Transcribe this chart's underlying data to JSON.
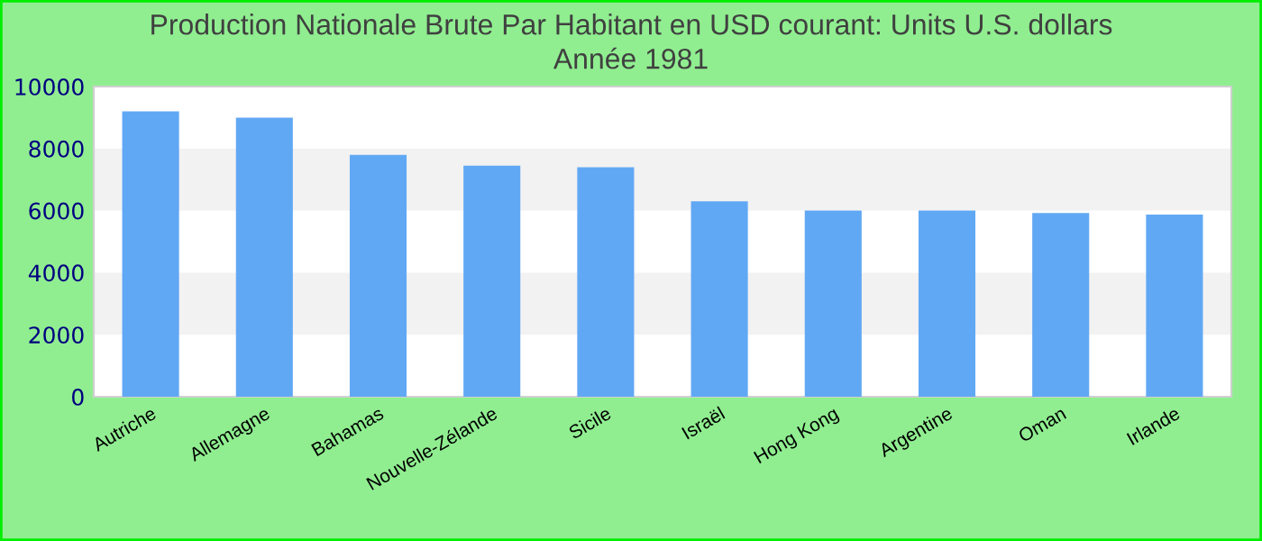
{
  "chart_data": {
    "type": "bar",
    "title": "Production Nationale Brute Par Habitant en USD courant: Units U.S. dollars",
    "subtitle": "Année 1981",
    "categories": [
      "Autriche",
      "Allemagne",
      "Bahamas",
      "Nouvelle-Zélande",
      "Sicile",
      "Israël",
      "Hong Kong",
      "Argentine",
      "Oman",
      "Irlande"
    ],
    "series": [
      {
        "color": "#61a8f4",
        "values": [
          9200,
          9000,
          7800,
          7450,
          7400,
          6300,
          6000,
          6000,
          5920,
          5870
        ]
      }
    ],
    "ylim": [
      0,
      10000
    ],
    "yticks": [
      0,
      2000,
      4000,
      6000,
      8000,
      10000
    ],
    "bands": [
      {
        "axis": "y",
        "from": 2000,
        "to": 4000,
        "color": "#f2f2f2"
      },
      {
        "axis": "y",
        "from": 6000,
        "to": 8000,
        "color": "#f2f2f2"
      }
    ],
    "legend": false
  }
}
